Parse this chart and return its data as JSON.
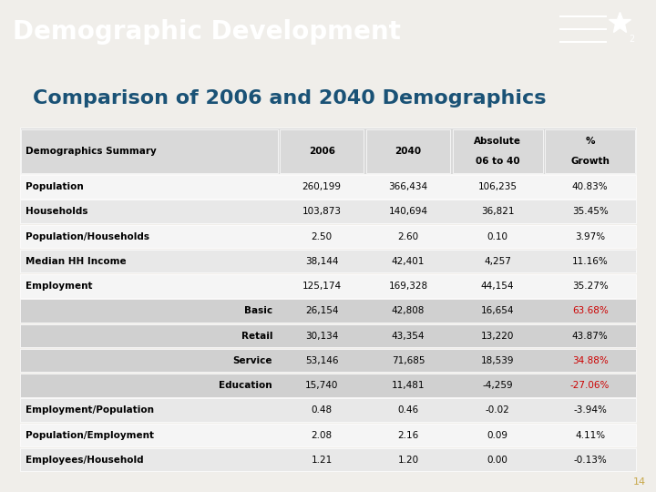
{
  "title_bar_text": "Demographic Development",
  "title_bar_bg": "#1a2e4a",
  "subtitle": "Comparison of 2006 and 2040 Demographics",
  "subtitle_color": "#1a5276",
  "bg_color": "#f0eeea",
  "table_bg": "#f0eeea",
  "page_number": "14",
  "footer_bg": "#1a2e4a",
  "header_cols": [
    "Demographics Summary",
    "2006",
    "2040",
    "Absolute\n06 to 40",
    "%\nGrowth"
  ],
  "rows": [
    {
      "label": "Population",
      "indent": false,
      "align": "left",
      "2006": "260,199",
      "2040": "366,434",
      "abs": "106,235",
      "pct": "40.83%",
      "pct_color": "black"
    },
    {
      "label": "Households",
      "indent": false,
      "align": "left",
      "2006": "103,873",
      "2040": "140,694",
      "abs": "36,821",
      "pct": "35.45%",
      "pct_color": "black"
    },
    {
      "label": "Population/Households",
      "indent": false,
      "align": "left",
      "2006": "2.50",
      "2040": "2.60",
      "abs": "0.10",
      "pct": "3.97%",
      "pct_color": "black"
    },
    {
      "label": "Median HH Income",
      "indent": false,
      "align": "left",
      "2006": "38,144",
      "2040": "42,401",
      "abs": "4,257",
      "pct": "11.16%",
      "pct_color": "black"
    },
    {
      "label": "Employment",
      "indent": false,
      "align": "left",
      "2006": "125,174",
      "2040": "169,328",
      "abs": "44,154",
      "pct": "35.27%",
      "pct_color": "black"
    },
    {
      "label": "Basic",
      "indent": true,
      "align": "right",
      "2006": "26,154",
      "2040": "42,808",
      "abs": "16,654",
      "pct": "63.68%",
      "pct_color": "#cc0000"
    },
    {
      "label": "Retail",
      "indent": true,
      "align": "right",
      "2006": "30,134",
      "2040": "43,354",
      "abs": "13,220",
      "pct": "43.87%",
      "pct_color": "black"
    },
    {
      "label": "Service",
      "indent": true,
      "align": "right",
      "2006": "53,146",
      "2040": "71,685",
      "abs": "18,539",
      "pct": "34.88%",
      "pct_color": "#cc0000"
    },
    {
      "label": "Education",
      "indent": true,
      "align": "right",
      "2006": "15,740",
      "2040": "11,481",
      "abs": "-4,259",
      "pct": "-27.06%",
      "pct_color": "#cc0000"
    },
    {
      "label": "Employment/Population",
      "indent": false,
      "align": "left",
      "2006": "0.48",
      "2040": "0.46",
      "abs": "-0.02",
      "pct": "-3.94%",
      "pct_color": "black"
    },
    {
      "label": "Population/Employment",
      "indent": false,
      "align": "left",
      "2006": "2.08",
      "2040": "2.16",
      "abs": "0.09",
      "pct": "4.11%",
      "pct_color": "black"
    },
    {
      "label": "Employees/Household",
      "indent": false,
      "align": "left",
      "2006": "1.21",
      "2040": "1.20",
      "abs": "0.00",
      "pct": "-0.13%",
      "pct_color": "black"
    }
  ],
  "col_header_bg": "#d9d9d9",
  "row_alt_bg": "#e8e8e8",
  "row_main_bg": "#f5f5f5",
  "indent_bg": "#d0d0d0"
}
